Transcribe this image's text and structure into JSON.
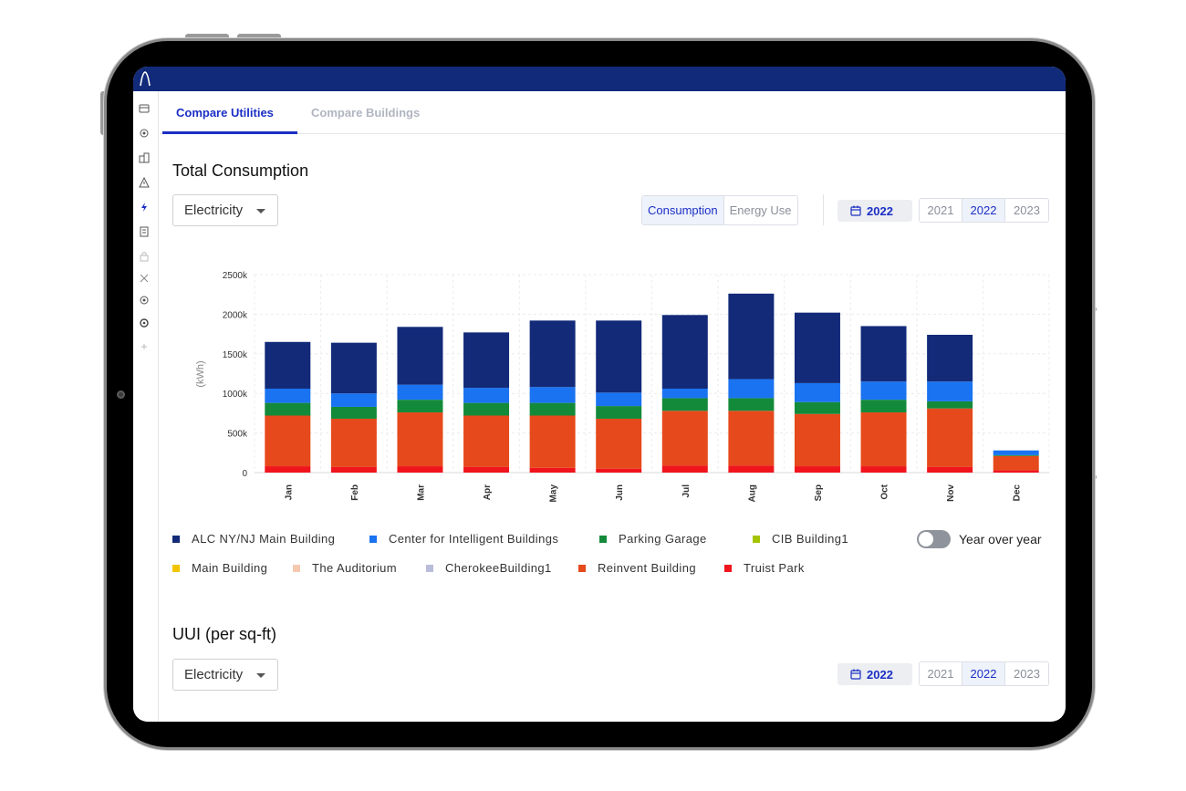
{
  "app": {
    "nav_icons": [
      "dashboard-icon",
      "target-icon",
      "buildings-icon",
      "alert-icon",
      "lightning-icon",
      "report-icon",
      "lock-icon",
      "tools-icon",
      "target-icon",
      "settings-icon",
      "add-icon"
    ]
  },
  "tabs": [
    {
      "label": "Compare Utilities",
      "active": true
    },
    {
      "label": "Compare Buildings",
      "active": false
    }
  ],
  "consumption": {
    "title": "Total Consumption",
    "utility_select": "Electricity",
    "mode_toggle": [
      {
        "label": "Consumption",
        "selected": true
      },
      {
        "label": "Energy Use",
        "selected": false
      }
    ],
    "year_pill": "2022",
    "years": [
      {
        "label": "2021",
        "selected": false
      },
      {
        "label": "2022",
        "selected": true
      },
      {
        "label": "2023",
        "selected": false
      }
    ],
    "yoy_label": "Year over year",
    "yoy_on": false
  },
  "uui": {
    "title": "UUI (per sq-ft)",
    "utility_select": "Electricity",
    "year_pill": "2022",
    "years": [
      {
        "label": "2021",
        "selected": false
      },
      {
        "label": "2022",
        "selected": true
      },
      {
        "label": "2023",
        "selected": false
      }
    ]
  },
  "legend": [
    {
      "name": "ALC NY/NJ Main Building",
      "color": "#122a78"
    },
    {
      "name": "Center for Intelligent Buildings",
      "color": "#1a73f0"
    },
    {
      "name": "Parking Garage",
      "color": "#138a3a"
    },
    {
      "name": "CIB Building1",
      "color": "#a5c400"
    },
    {
      "name": "Main Building",
      "color": "#f2c500"
    },
    {
      "name": "The Auditorium",
      "color": "#f5c9ae"
    },
    {
      "name": "CherokeeBuilding1",
      "color": "#b9bdd9"
    },
    {
      "name": "Reinvent Building",
      "color": "#e6491b"
    },
    {
      "name": "Truist Park",
      "color": "#f0151d"
    }
  ],
  "chart_data": {
    "type": "bar",
    "stacked": true,
    "title": "",
    "xlabel": "",
    "ylabel": "(kWh)",
    "ylim": [
      0,
      2500000
    ],
    "yticks": [
      0,
      500000,
      1000000,
      1500000,
      2000000,
      2500000
    ],
    "ytick_labels": [
      "0",
      "500k",
      "1000k",
      "1500k",
      "2000k",
      "2500k"
    ],
    "grid": true,
    "categories": [
      "Jan",
      "Feb",
      "Mar",
      "Apr",
      "May",
      "Jun",
      "Jul",
      "Aug",
      "Sep",
      "Oct",
      "Nov",
      "Dec"
    ],
    "series": [
      {
        "name": "Truist Park",
        "color": "#f0151d",
        "values": [
          80000,
          70000,
          80000,
          70000,
          60000,
          50000,
          90000,
          90000,
          80000,
          80000,
          70000,
          30000
        ]
      },
      {
        "name": "Reinvent Building",
        "color": "#e6491b",
        "values": [
          640000,
          610000,
          680000,
          650000,
          660000,
          630000,
          690000,
          690000,
          660000,
          680000,
          740000,
          180000
        ]
      },
      {
        "name": "Parking Garage",
        "color": "#138a3a",
        "values": [
          160000,
          150000,
          160000,
          160000,
          160000,
          160000,
          160000,
          160000,
          150000,
          160000,
          90000,
          10000
        ]
      },
      {
        "name": "Center for Intelligent Buildings",
        "color": "#1a73f0",
        "values": [
          180000,
          170000,
          190000,
          190000,
          200000,
          170000,
          120000,
          240000,
          240000,
          230000,
          250000,
          60000
        ]
      },
      {
        "name": "ALC NY/NJ Main Building",
        "color": "#122a78",
        "values": [
          590000,
          640000,
          730000,
          700000,
          840000,
          910000,
          930000,
          1080000,
          890000,
          700000,
          590000,
          0
        ]
      }
    ]
  }
}
